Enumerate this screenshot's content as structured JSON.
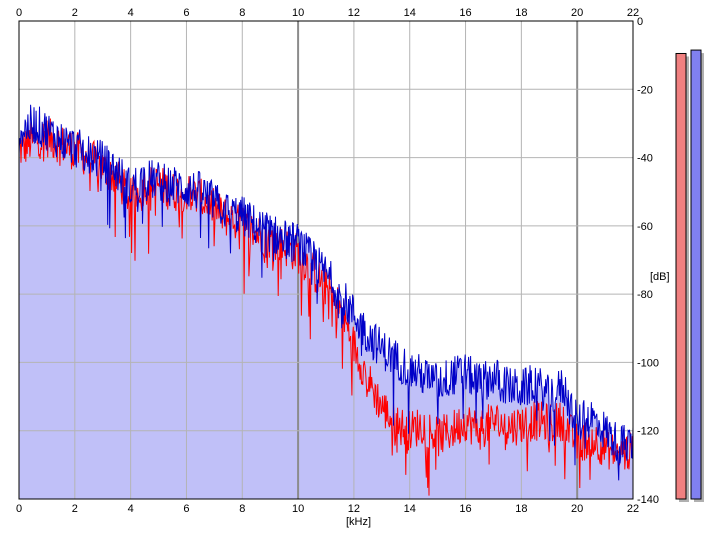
{
  "chart_data": {
    "type": "area",
    "xlabel": "[kHz]",
    "ylabel": "[dB]",
    "xlim": [
      0,
      22
    ],
    "ylim": [
      -140,
      0
    ],
    "x_ticks": [
      0,
      2,
      4,
      6,
      8,
      10,
      12,
      14,
      16,
      18,
      20,
      22
    ],
    "y_ticks": [
      0,
      -20,
      -40,
      -60,
      -80,
      -100,
      -120,
      -140
    ],
    "grid": true,
    "colors": {
      "fill": "#c0c0f8",
      "left_channel": "#ff0000",
      "right_channel": "#0000c8",
      "grid_minor": "#b4b4b4",
      "grid_major": "#8c8c8c",
      "meter_left": "#f08080",
      "meter_right": "#8080f0"
    },
    "series": [
      {
        "color": "red",
        "x": [
          0.0,
          0.5,
          1.0,
          1.5,
          2.0,
          2.5,
          3.0,
          3.5,
          4.0,
          4.5,
          5.0,
          5.5,
          6.0,
          6.5,
          7.0,
          7.5,
          8.0,
          8.5,
          9.0,
          9.5,
          10.0,
          10.5,
          11.0,
          11.5,
          12.0,
          12.5,
          13.0,
          13.5,
          14.0,
          14.5,
          15.0,
          15.5,
          16.0,
          16.5,
          17.0,
          17.5,
          18.0,
          18.5,
          19.0,
          19.5,
          20.0,
          20.5,
          21.0,
          21.5,
          22.0
        ],
        "y": [
          -38,
          -35,
          -34,
          -36,
          -38,
          -40,
          -43,
          -46,
          -52,
          -48,
          -48,
          -50,
          -50,
          -52,
          -55,
          -58,
          -60,
          -62,
          -64,
          -66,
          -68,
          -73,
          -78,
          -84,
          -95,
          -105,
          -113,
          -118,
          -120,
          -118,
          -122,
          -120,
          -117,
          -120,
          -117,
          -119,
          -118,
          -117,
          -118,
          -117,
          -124,
          -122,
          -125,
          -127,
          -126
        ]
      },
      {
        "color": "blue",
        "x": [
          0.0,
          0.5,
          1.0,
          1.5,
          2.0,
          2.5,
          3.0,
          3.5,
          4.0,
          4.5,
          5.0,
          5.5,
          6.0,
          6.5,
          7.0,
          7.5,
          8.0,
          8.5,
          9.0,
          9.5,
          10.0,
          10.5,
          11.0,
          11.5,
          12.0,
          12.5,
          13.0,
          13.5,
          14.0,
          14.5,
          15.0,
          15.5,
          16.0,
          16.5,
          17.0,
          17.5,
          18.0,
          18.5,
          19.0,
          19.5,
          20.0,
          20.5,
          21.0,
          21.5,
          22.0
        ],
        "y": [
          -33,
          -30,
          -32,
          -35,
          -37,
          -39,
          -41,
          -44,
          -49,
          -46,
          -47,
          -48,
          -49,
          -50,
          -53,
          -56,
          -57,
          -60,
          -62,
          -64,
          -65,
          -70,
          -74,
          -80,
          -86,
          -92,
          -96,
          -99,
          -102,
          -104,
          -106,
          -104,
          -103,
          -106,
          -104,
          -107,
          -108,
          -106,
          -110,
          -107,
          -118,
          -116,
          -120,
          -124,
          -124
        ]
      }
    ],
    "level_meters": [
      {
        "channel": "left",
        "level_db": -6
      },
      {
        "channel": "right",
        "level_db": -5
      }
    ]
  }
}
